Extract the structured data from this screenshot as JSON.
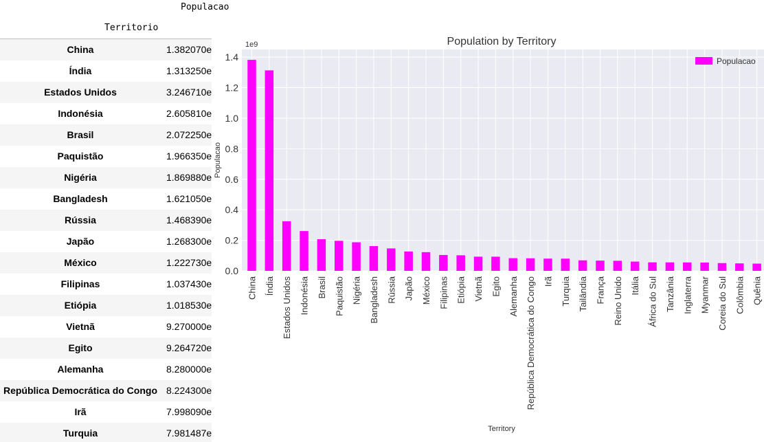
{
  "table": {
    "column_header": "Populacao",
    "index_header": "Territorio",
    "rows": [
      {
        "territory": "China",
        "value": "1.382070e"
      },
      {
        "territory": "Índia",
        "value": "1.313250e"
      },
      {
        "territory": "Estados Unidos",
        "value": "3.246710e"
      },
      {
        "territory": "Indonésia",
        "value": "2.605810e"
      },
      {
        "territory": "Brasil",
        "value": "2.072250e"
      },
      {
        "territory": "Paquistão",
        "value": "1.966350e"
      },
      {
        "territory": "Nigéria",
        "value": "1.869880e"
      },
      {
        "territory": "Bangladesh",
        "value": "1.621050e"
      },
      {
        "territory": "Rússia",
        "value": "1.468390e"
      },
      {
        "territory": "Japão",
        "value": "1.268300e"
      },
      {
        "territory": "México",
        "value": "1.222730e"
      },
      {
        "territory": "Filipinas",
        "value": "1.037430e"
      },
      {
        "territory": "Etiópia",
        "value": "1.018530e"
      },
      {
        "territory": "Vietnã",
        "value": "9.270000e"
      },
      {
        "territory": "Egito",
        "value": "9.264720e"
      },
      {
        "territory": "Alemanha",
        "value": "8.280000e"
      },
      {
        "territory": "República Democrática do Congo",
        "value": "8.224300e"
      },
      {
        "territory": "Irã",
        "value": "7.998090e"
      },
      {
        "territory": "Turquia",
        "value": "7.981487e"
      }
    ]
  },
  "chart_data": {
    "type": "bar",
    "title": "Population by Territory",
    "xlabel": "Territory",
    "ylabel": "Populacao",
    "offset_text": "1e9",
    "ylim": [
      0,
      1.45
    ],
    "yticks": [
      0.0,
      0.2,
      0.4,
      0.6,
      0.8,
      1.0,
      1.2,
      1.4
    ],
    "ytick_labels": [
      "0.0",
      "0.2",
      "0.4",
      "0.6",
      "0.8",
      "1.0",
      "1.2",
      "1.4"
    ],
    "grid": true,
    "legend_position": "top-right",
    "colors": {
      "bar": "#ff00ff",
      "background": "#eaeaf2",
      "grid": "#ffffff",
      "text": "#333333"
    },
    "categories": [
      "China",
      "Índia",
      "Estados Unidos",
      "Indonésia",
      "Brasil",
      "Paquistão",
      "Nigéria",
      "Bangladesh",
      "Rússia",
      "Japão",
      "México",
      "Filipinas",
      "Etiópia",
      "Vietnã",
      "Egito",
      "Alemanha",
      "República Democrática do Congo",
      "Irã",
      "Turquia",
      "Tailândia",
      "França",
      "Reino Unido",
      "Itália",
      "África do Sul",
      "Tanzânia",
      "Inglaterra",
      "Myanmar",
      "Coreia do Sul",
      "Colômbia",
      "Quênia"
    ],
    "series": [
      {
        "name": "Populacao",
        "values": [
          1.38207,
          1.31325,
          0.324671,
          0.260581,
          0.207225,
          0.196635,
          0.186988,
          0.162105,
          0.146839,
          0.12683,
          0.122273,
          0.103743,
          0.101853,
          0.0927,
          0.0926472,
          0.0828,
          0.082243,
          0.0799809,
          0.0798149,
          0.0686,
          0.0669,
          0.0657,
          0.0606,
          0.0555,
          0.0553,
          0.0551,
          0.0543,
          0.0507,
          0.0488,
          0.0473
        ]
      }
    ]
  }
}
